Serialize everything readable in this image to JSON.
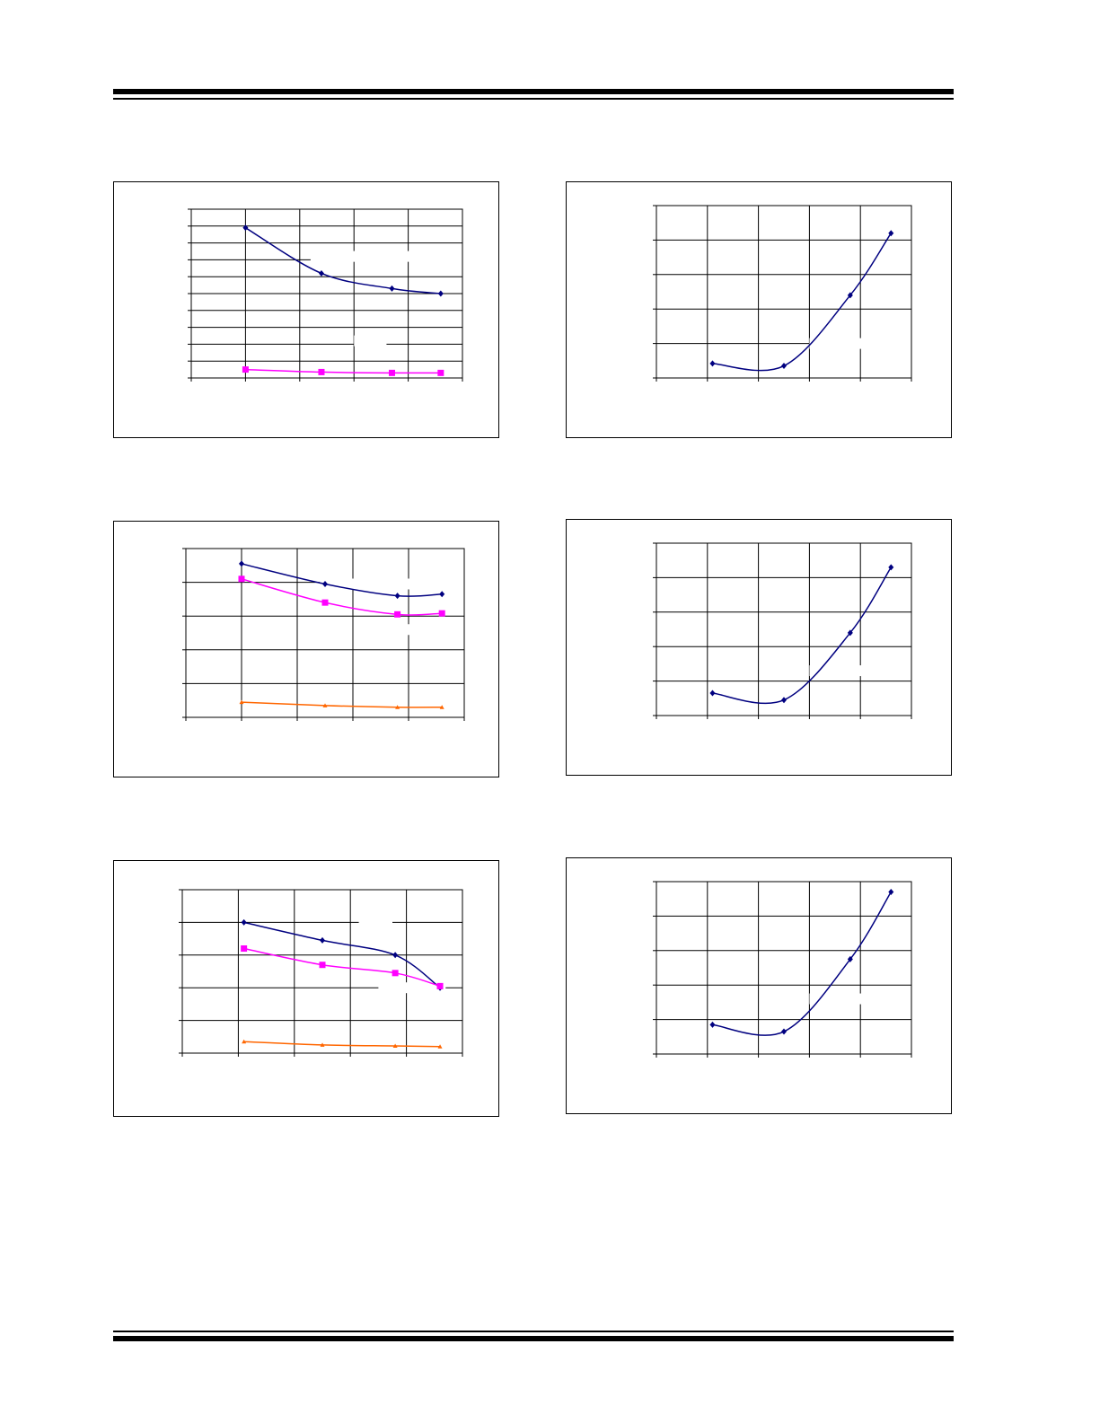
{
  "page": {},
  "colors": {
    "navy": "#000080",
    "magenta": "#ff00ff",
    "orange": "#ff6600"
  },
  "chart_data": [
    {
      "type": "line",
      "title": "",
      "xlabel": "",
      "ylabel": "",
      "x": [
        1,
        2.4,
        3.7,
        4.6
      ],
      "xlim": [
        0,
        5
      ],
      "ylim": [
        0,
        10
      ],
      "xgrid": 5,
      "ygrid": 10,
      "gaps": [
        [
          2.2,
          7.2,
          3.6
        ],
        [
          3.0,
          2.2,
          0.6
        ]
      ],
      "series": [
        {
          "color": "#000080",
          "marker": "diamond",
          "values": [
            8.9,
            6.2,
            5.3,
            5.0
          ]
        },
        {
          "color": "#ff00ff",
          "marker": "square",
          "values": [
            0.5,
            0.35,
            0.3,
            0.3
          ]
        }
      ]
    },
    {
      "type": "line",
      "title": "",
      "xlabel": "",
      "ylabel": "",
      "x": [
        1,
        2.5,
        3.8,
        4.6
      ],
      "xlim": [
        0,
        5
      ],
      "ylim": [
        0,
        5
      ],
      "xgrid": 5,
      "ygrid": 5,
      "gaps": [
        [
          2.4,
          3.95,
          3.3
        ],
        [
          3.6,
          2.6,
          2.0
        ],
        [
          3.1,
          1.4,
          0.6
        ]
      ],
      "series": [
        {
          "color": "#000080",
          "marker": "diamond",
          "values": [
            4.55,
            3.95,
            3.6,
            3.65
          ]
        },
        {
          "color": "#ff00ff",
          "marker": "square",
          "values": [
            4.1,
            3.4,
            3.05,
            3.08
          ]
        },
        {
          "color": "#ff6600",
          "marker": "triangle",
          "values": [
            0.45,
            0.35,
            0.3,
            0.3
          ]
        }
      ]
    },
    {
      "type": "line",
      "title": "",
      "xlabel": "",
      "ylabel": "",
      "x": [
        1.1,
        2.5,
        3.8,
        4.6
      ],
      "xlim": [
        0,
        5
      ],
      "ylim": [
        0,
        5
      ],
      "xgrid": 5,
      "ygrid": 5,
      "gaps": [
        [
          3.15,
          4.0,
          0.6
        ],
        [
          3.5,
          2.0,
          1.2
        ]
      ],
      "series": [
        {
          "color": "#000080",
          "marker": "diamond",
          "values": [
            4.0,
            3.45,
            3.0,
            2.0
          ]
        },
        {
          "color": "#ff00ff",
          "marker": "square",
          "values": [
            3.2,
            2.7,
            2.45,
            2.05
          ]
        },
        {
          "color": "#ff6600",
          "marker": "triangle",
          "values": [
            0.35,
            0.25,
            0.22,
            0.2
          ]
        }
      ]
    },
    {
      "type": "line",
      "title": "",
      "xlabel": "",
      "ylabel": "",
      "x": [
        1.1,
        2.5,
        3.8,
        4.6
      ],
      "xlim": [
        0,
        5
      ],
      "ylim": [
        0,
        5
      ],
      "xgrid": 5,
      "ygrid": 5,
      "gaps": [
        [
          3.0,
          1.0,
          2.8
        ]
      ],
      "series": [
        {
          "color": "#000080",
          "marker": "diamond",
          "values": [
            0.42,
            0.35,
            2.4,
            4.2
          ]
        }
      ]
    },
    {
      "type": "line",
      "title": "",
      "xlabel": "",
      "ylabel": "",
      "x": [
        1.1,
        2.5,
        3.8,
        4.6
      ],
      "xlim": [
        0,
        5
      ],
      "ylim": [
        0,
        5
      ],
      "xgrid": 5,
      "ygrid": 5,
      "gaps": [
        [
          3.0,
          1.3,
          2.3
        ]
      ],
      "series": [
        {
          "color": "#000080",
          "marker": "diamond",
          "values": [
            0.65,
            0.45,
            2.4,
            4.3
          ]
        }
      ]
    },
    {
      "type": "line",
      "title": "",
      "xlabel": "",
      "ylabel": "",
      "x": [
        1.1,
        2.5,
        3.8,
        4.6
      ],
      "xlim": [
        0,
        5
      ],
      "ylim": [
        0,
        5
      ],
      "xgrid": 5,
      "ygrid": 5,
      "gaps": [
        [
          3.0,
          1.6,
          2.2
        ]
      ],
      "series": [
        {
          "color": "#000080",
          "marker": "diamond",
          "values": [
            0.85,
            0.65,
            2.75,
            4.7
          ]
        }
      ]
    }
  ]
}
